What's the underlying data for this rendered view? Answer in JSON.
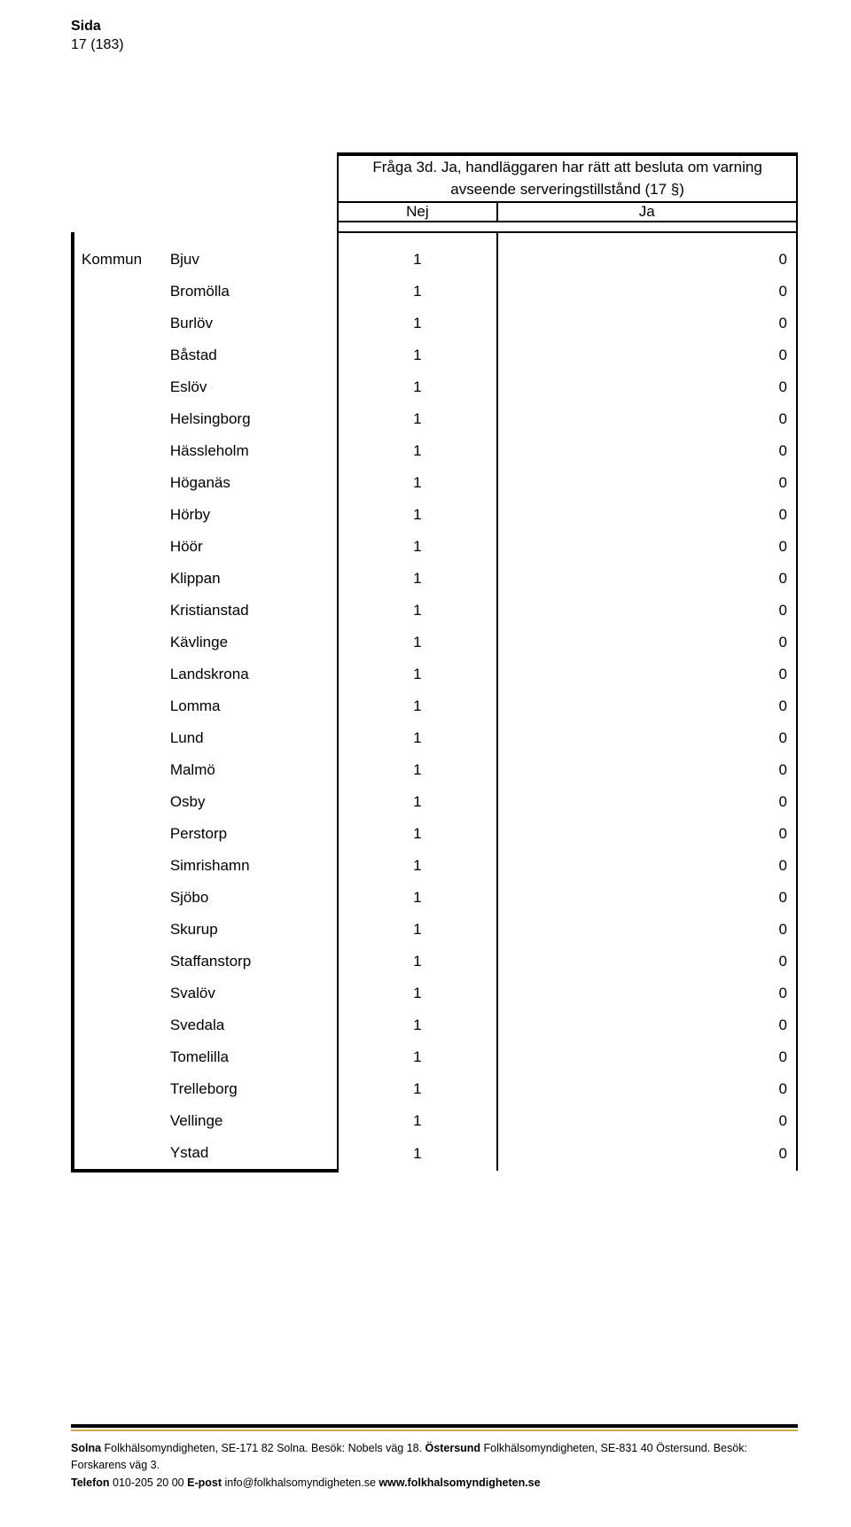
{
  "header": {
    "sida_label": "Sida",
    "page_number": "17 (183)"
  },
  "question": {
    "line1": "Fråga 3d. Ja, handläggaren har rätt att besluta om varning",
    "line2": "avseende serveringstillstånd (17 §)"
  },
  "answers": {
    "nej_label": "Nej",
    "ja_label": "Ja"
  },
  "kommun_label": "Kommun",
  "rows": [
    {
      "name": "Bjuv",
      "nej": "1",
      "ja": "0"
    },
    {
      "name": "Bromölla",
      "nej": "1",
      "ja": "0"
    },
    {
      "name": "Burlöv",
      "nej": "1",
      "ja": "0"
    },
    {
      "name": "Båstad",
      "nej": "1",
      "ja": "0"
    },
    {
      "name": "Eslöv",
      "nej": "1",
      "ja": "0"
    },
    {
      "name": "Helsingborg",
      "nej": "1",
      "ja": "0"
    },
    {
      "name": "Hässleholm",
      "nej": "1",
      "ja": "0"
    },
    {
      "name": "Höganäs",
      "nej": "1",
      "ja": "0"
    },
    {
      "name": "Hörby",
      "nej": "1",
      "ja": "0"
    },
    {
      "name": "Höör",
      "nej": "1",
      "ja": "0"
    },
    {
      "name": "Klippan",
      "nej": "1",
      "ja": "0"
    },
    {
      "name": "Kristianstad",
      "nej": "1",
      "ja": "0"
    },
    {
      "name": "Kävlinge",
      "nej": "1",
      "ja": "0"
    },
    {
      "name": "Landskrona",
      "nej": "1",
      "ja": "0"
    },
    {
      "name": "Lomma",
      "nej": "1",
      "ja": "0"
    },
    {
      "name": "Lund",
      "nej": "1",
      "ja": "0"
    },
    {
      "name": "Malmö",
      "nej": "1",
      "ja": "0"
    },
    {
      "name": "Osby",
      "nej": "1",
      "ja": "0"
    },
    {
      "name": "Perstorp",
      "nej": "1",
      "ja": "0"
    },
    {
      "name": "Simrishamn",
      "nej": "1",
      "ja": "0"
    },
    {
      "name": "Sjöbo",
      "nej": "1",
      "ja": "0"
    },
    {
      "name": "Skurup",
      "nej": "1",
      "ja": "0"
    },
    {
      "name": "Staffanstorp",
      "nej": "1",
      "ja": "0"
    },
    {
      "name": "Svalöv",
      "nej": "1",
      "ja": "0"
    },
    {
      "name": "Svedala",
      "nej": "1",
      "ja": "0"
    },
    {
      "name": "Tomelilla",
      "nej": "1",
      "ja": "0"
    },
    {
      "name": "Trelleborg",
      "nej": "1",
      "ja": "0"
    },
    {
      "name": "Vellinge",
      "nej": "1",
      "ja": "0"
    },
    {
      "name": "Ystad",
      "nej": "1",
      "ja": "0"
    }
  ],
  "footer": {
    "line1_b1": "Solna",
    "line1_t1": " Folkhälsomyndigheten, SE-171 82 Solna. Besök: Nobels väg 18. ",
    "line1_b2": "Östersund",
    "line1_t2": " Folkhälsomyndigheten, SE-831 40 Östersund. Besök: Forskarens väg 3.",
    "line2_b1": "Telefon",
    "line2_t1": " 010-205 20 00 ",
    "line2_b2": "E-post",
    "line2_t2": " info@folkhalsomyndigheten.se ",
    "line2_b3": "www.folkhalsomyndigheten.se"
  },
  "style": {
    "accent_rule_color": "#cfa94a"
  }
}
